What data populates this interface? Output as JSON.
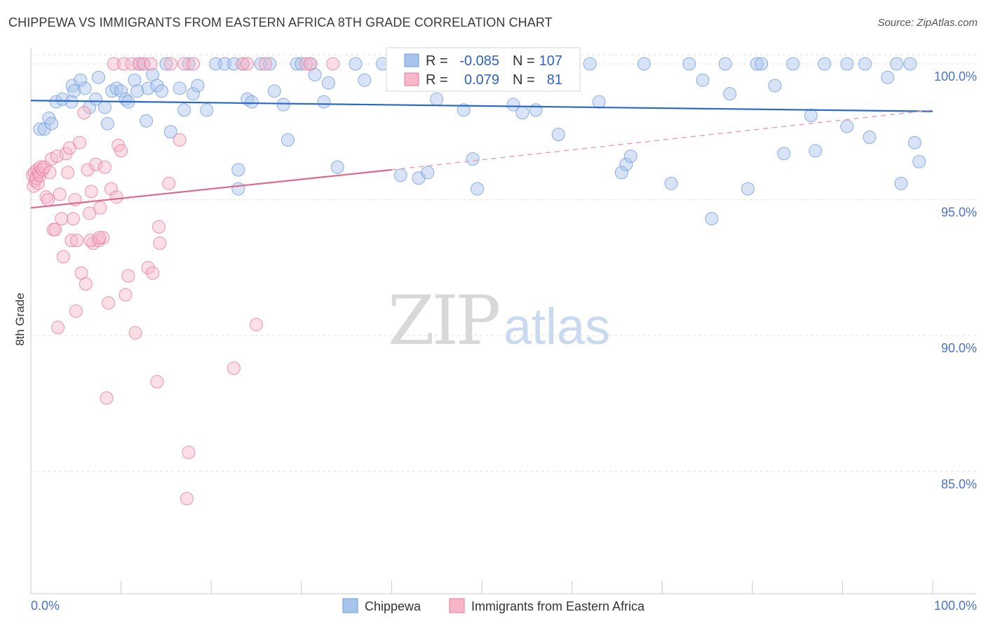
{
  "header": {
    "title": "CHIPPEWA VS IMMIGRANTS FROM EASTERN AFRICA 8TH GRADE CORRELATION CHART",
    "source": "Source: ZipAtlas.com"
  },
  "watermark": {
    "zip": "ZIP",
    "atlas": "atlas"
  },
  "legend_box": {
    "rows": [
      {
        "r_label": "R =",
        "r_value": "-0.085",
        "n_label": "N =",
        "n_value": "107",
        "color": "#a9c4ea"
      },
      {
        "r_label": "R =",
        "r_value": "0.079",
        "n_label": "N =",
        "n_value": "81",
        "color": "#f6b7c9"
      }
    ]
  },
  "chart_data": {
    "type": "scatter",
    "title": "CHIPPEWA VS IMMIGRANTS FROM EASTERN AFRICA 8TH GRADE CORRELATION CHART",
    "xlabel": "",
    "ylabel": "8th Grade",
    "xlim": [
      0,
      100
    ],
    "ylim": [
      80.5,
      100.8
    ],
    "x_ticks_labels": [
      "0.0%",
      "100.0%"
    ],
    "y_ticks": [
      85,
      90,
      95,
      100
    ],
    "y_ticks_labels": [
      "85.0%",
      "90.0%",
      "95.0%",
      "100.0%"
    ],
    "grid": true,
    "legend_position": "top-center",
    "series": [
      {
        "name": "Chippewa",
        "color": "#6f9be0",
        "fill": "#a9c4ea",
        "r": -0.085,
        "n": 107,
        "trend": {
          "x": [
            0,
            100
          ],
          "y": [
            98.65,
            98.25
          ]
        },
        "points": [
          [
            1.0,
            97.6
          ],
          [
            1.5,
            97.6
          ],
          [
            2.0,
            98.0
          ],
          [
            2.3,
            97.8
          ],
          [
            2.8,
            98.6
          ],
          [
            3.5,
            98.7
          ],
          [
            4.5,
            98.6
          ],
          [
            4.6,
            99.2
          ],
          [
            4.8,
            99.0
          ],
          [
            5.5,
            99.4
          ],
          [
            6.0,
            99.1
          ],
          [
            6.5,
            98.4
          ],
          [
            7.2,
            98.7
          ],
          [
            7.5,
            99.5
          ],
          [
            8.2,
            98.4
          ],
          [
            8.5,
            97.8
          ],
          [
            9.0,
            99.0
          ],
          [
            9.5,
            99.1
          ],
          [
            10.0,
            99.0
          ],
          [
            10.5,
            98.7
          ],
          [
            10.8,
            98.6
          ],
          [
            11.5,
            99.4
          ],
          [
            11.8,
            99.0
          ],
          [
            12.0,
            100.0
          ],
          [
            12.5,
            100.0
          ],
          [
            12.8,
            97.9
          ],
          [
            13.0,
            99.1
          ],
          [
            13.5,
            99.6
          ],
          [
            14.0,
            99.2
          ],
          [
            14.5,
            99.0
          ],
          [
            15.0,
            100.0
          ],
          [
            15.5,
            97.5
          ],
          [
            16.5,
            99.1
          ],
          [
            17.0,
            98.3
          ],
          [
            17.5,
            100.0
          ],
          [
            18.0,
            98.9
          ],
          [
            18.5,
            99.2
          ],
          [
            19.5,
            98.3
          ],
          [
            20.5,
            100.0
          ],
          [
            21.5,
            100.0
          ],
          [
            22.5,
            100.0
          ],
          [
            23.0,
            96.1
          ],
          [
            23.0,
            95.4
          ],
          [
            23.5,
            100.0
          ],
          [
            24.0,
            98.7
          ],
          [
            24.5,
            98.6
          ],
          [
            25.5,
            100.0
          ],
          [
            26.5,
            100.0
          ],
          [
            27.0,
            99.0
          ],
          [
            28.0,
            98.5
          ],
          [
            28.5,
            97.2
          ],
          [
            29.5,
            100.0
          ],
          [
            30.0,
            100.0
          ],
          [
            31.0,
            100.0
          ],
          [
            31.5,
            99.6
          ],
          [
            32.5,
            98.6
          ],
          [
            33.0,
            99.3
          ],
          [
            34.0,
            96.2
          ],
          [
            36.0,
            100.0
          ],
          [
            37.0,
            99.4
          ],
          [
            39.0,
            100.0
          ],
          [
            41.0,
            95.9
          ],
          [
            43.0,
            95.8
          ],
          [
            44.0,
            96.0
          ],
          [
            45.0,
            98.7
          ],
          [
            46.5,
            100.0
          ],
          [
            48.0,
            98.3
          ],
          [
            49.0,
            96.5
          ],
          [
            49.5,
            95.4
          ],
          [
            50.5,
            100.0
          ],
          [
            53.5,
            98.5
          ],
          [
            54.5,
            98.2
          ],
          [
            56.0,
            98.3
          ],
          [
            57.5,
            100.0
          ],
          [
            58.5,
            97.4
          ],
          [
            59.5,
            99.3
          ],
          [
            62.0,
            100.0
          ],
          [
            63.0,
            98.6
          ],
          [
            65.5,
            96.0
          ],
          [
            66.0,
            96.3
          ],
          [
            66.5,
            96.6
          ],
          [
            68.0,
            100.0
          ],
          [
            71.0,
            95.6
          ],
          [
            73.0,
            100.0
          ],
          [
            74.5,
            99.4
          ],
          [
            75.5,
            94.3
          ],
          [
            77.0,
            100.0
          ],
          [
            77.5,
            98.9
          ],
          [
            79.5,
            95.4
          ],
          [
            80.5,
            100.0
          ],
          [
            81.0,
            100.0
          ],
          [
            82.5,
            99.2
          ],
          [
            83.5,
            96.7
          ],
          [
            84.5,
            100.0
          ],
          [
            86.5,
            98.1
          ],
          [
            87.0,
            96.8
          ],
          [
            88.0,
            100.0
          ],
          [
            90.5,
            97.7
          ],
          [
            90.5,
            100.0
          ],
          [
            92.5,
            100.0
          ],
          [
            93.0,
            97.3
          ],
          [
            95.0,
            99.5
          ],
          [
            96.0,
            100.0
          ],
          [
            96.5,
            95.6
          ],
          [
            97.5,
            100.0
          ],
          [
            98.0,
            97.1
          ],
          [
            98.5,
            96.4
          ]
        ]
      },
      {
        "name": "Immigrants from Eastern Africa",
        "color": "#e8799c",
        "fill": "#f6b7c9",
        "r": 0.079,
        "n": 81,
        "trend": {
          "x": [
            0,
            40
          ],
          "y": [
            94.7,
            96.1
          ]
        },
        "trend_dashed": {
          "x": [
            40,
            100
          ],
          "y": [
            96.1,
            98.3
          ]
        },
        "points": [
          [
            0.2,
            95.9
          ],
          [
            0.3,
            95.5
          ],
          [
            0.4,
            96.0
          ],
          [
            0.5,
            95.7
          ],
          [
            0.6,
            95.8
          ],
          [
            0.7,
            96.1
          ],
          [
            0.8,
            95.6
          ],
          [
            0.9,
            96.0
          ],
          [
            1.0,
            95.9
          ],
          [
            1.1,
            96.2
          ],
          [
            1.3,
            96.1
          ],
          [
            1.5,
            96.2
          ],
          [
            1.7,
            95.1
          ],
          [
            1.9,
            95.0
          ],
          [
            2.1,
            96.0
          ],
          [
            2.3,
            96.5
          ],
          [
            2.5,
            93.9
          ],
          [
            2.7,
            93.9
          ],
          [
            2.9,
            96.6
          ],
          [
            3.2,
            95.2
          ],
          [
            3.4,
            94.3
          ],
          [
            3.6,
            92.9
          ],
          [
            3.9,
            96.7
          ],
          [
            4.1,
            96.0
          ],
          [
            4.3,
            96.9
          ],
          [
            4.5,
            93.5
          ],
          [
            4.7,
            94.3
          ],
          [
            4.9,
            95.0
          ],
          [
            5.1,
            93.5
          ],
          [
            5.4,
            97.1
          ],
          [
            5.6,
            92.3
          ],
          [
            5.9,
            98.2
          ],
          [
            6.1,
            91.9
          ],
          [
            6.3,
            96.1
          ],
          [
            6.5,
            94.5
          ],
          [
            6.7,
            95.3
          ],
          [
            6.9,
            93.4
          ],
          [
            7.2,
            96.3
          ],
          [
            7.5,
            93.5
          ],
          [
            7.7,
            94.7
          ],
          [
            8.0,
            93.6
          ],
          [
            8.2,
            96.2
          ],
          [
            8.4,
            87.7
          ],
          [
            8.6,
            91.2
          ],
          [
            8.9,
            95.4
          ],
          [
            9.2,
            100.0
          ],
          [
            9.5,
            95.1
          ],
          [
            9.7,
            97.0
          ],
          [
            10.0,
            96.8
          ],
          [
            10.3,
            100.0
          ],
          [
            10.5,
            91.5
          ],
          [
            10.8,
            92.2
          ],
          [
            11.2,
            100.0
          ],
          [
            11.6,
            90.1
          ],
          [
            12.0,
            100.0
          ],
          [
            12.5,
            100.0
          ],
          [
            13.0,
            92.5
          ],
          [
            13.3,
            100.0
          ],
          [
            13.5,
            92.3
          ],
          [
            14.0,
            88.3
          ],
          [
            14.2,
            94.0
          ],
          [
            14.3,
            93.4
          ],
          [
            15.3,
            95.6
          ],
          [
            15.5,
            100.0
          ],
          [
            16.5,
            97.2
          ],
          [
            17.0,
            100.0
          ],
          [
            17.5,
            85.7
          ],
          [
            17.3,
            84.0
          ],
          [
            18.0,
            100.0
          ],
          [
            22.5,
            88.8
          ],
          [
            23.5,
            100.0
          ],
          [
            24.0,
            100.0
          ],
          [
            25.0,
            90.4
          ],
          [
            26.0,
            100.0
          ],
          [
            30.5,
            100.0
          ],
          [
            31.0,
            100.0
          ],
          [
            33.5,
            100.0
          ],
          [
            3.0,
            90.3
          ],
          [
            5.0,
            90.9
          ],
          [
            6.6,
            93.5
          ],
          [
            7.6,
            93.6
          ]
        ]
      }
    ]
  },
  "bottom_legend": {
    "items": [
      {
        "label": "Chippewa",
        "color": "#a9c4ea",
        "stroke": "#6f9be0"
      },
      {
        "label": "Immigrants from Eastern Africa",
        "color": "#f6b7c9",
        "stroke": "#e8799c"
      }
    ]
  }
}
